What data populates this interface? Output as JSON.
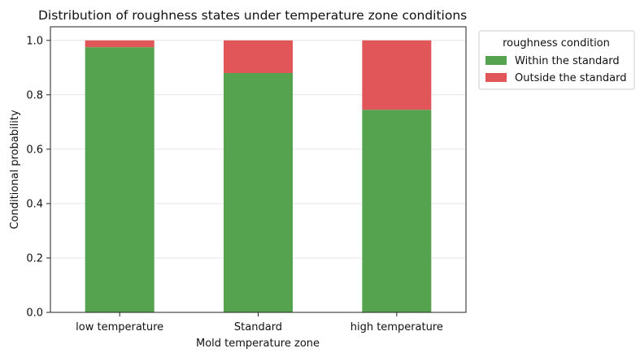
{
  "chart_data": {
    "type": "bar",
    "stacked": true,
    "title": "Distribution of roughness states under temperature zone conditions",
    "xlabel": "Mold temperature zone",
    "ylabel": "Conditional probability",
    "categories": [
      "low temperature",
      "Standard",
      "high temperature"
    ],
    "series": [
      {
        "name": "Within the standard",
        "color": "#55a24f",
        "values": [
          0.975,
          0.88,
          0.745
        ]
      },
      {
        "name": "Outside the standard",
        "color": "#e15759",
        "values": [
          0.025,
          0.12,
          0.255
        ]
      }
    ],
    "ylim": [
      0,
      1.05
    ],
    "yticks": [
      0.0,
      0.2,
      0.4,
      0.6,
      0.8,
      1.0
    ],
    "ytick_labels": [
      "0.0",
      "0.2",
      "0.4",
      "0.6",
      "0.8",
      "1.0"
    ],
    "grid": true,
    "legend": {
      "title": "roughness condition",
      "placement": "outside-top-right"
    }
  }
}
